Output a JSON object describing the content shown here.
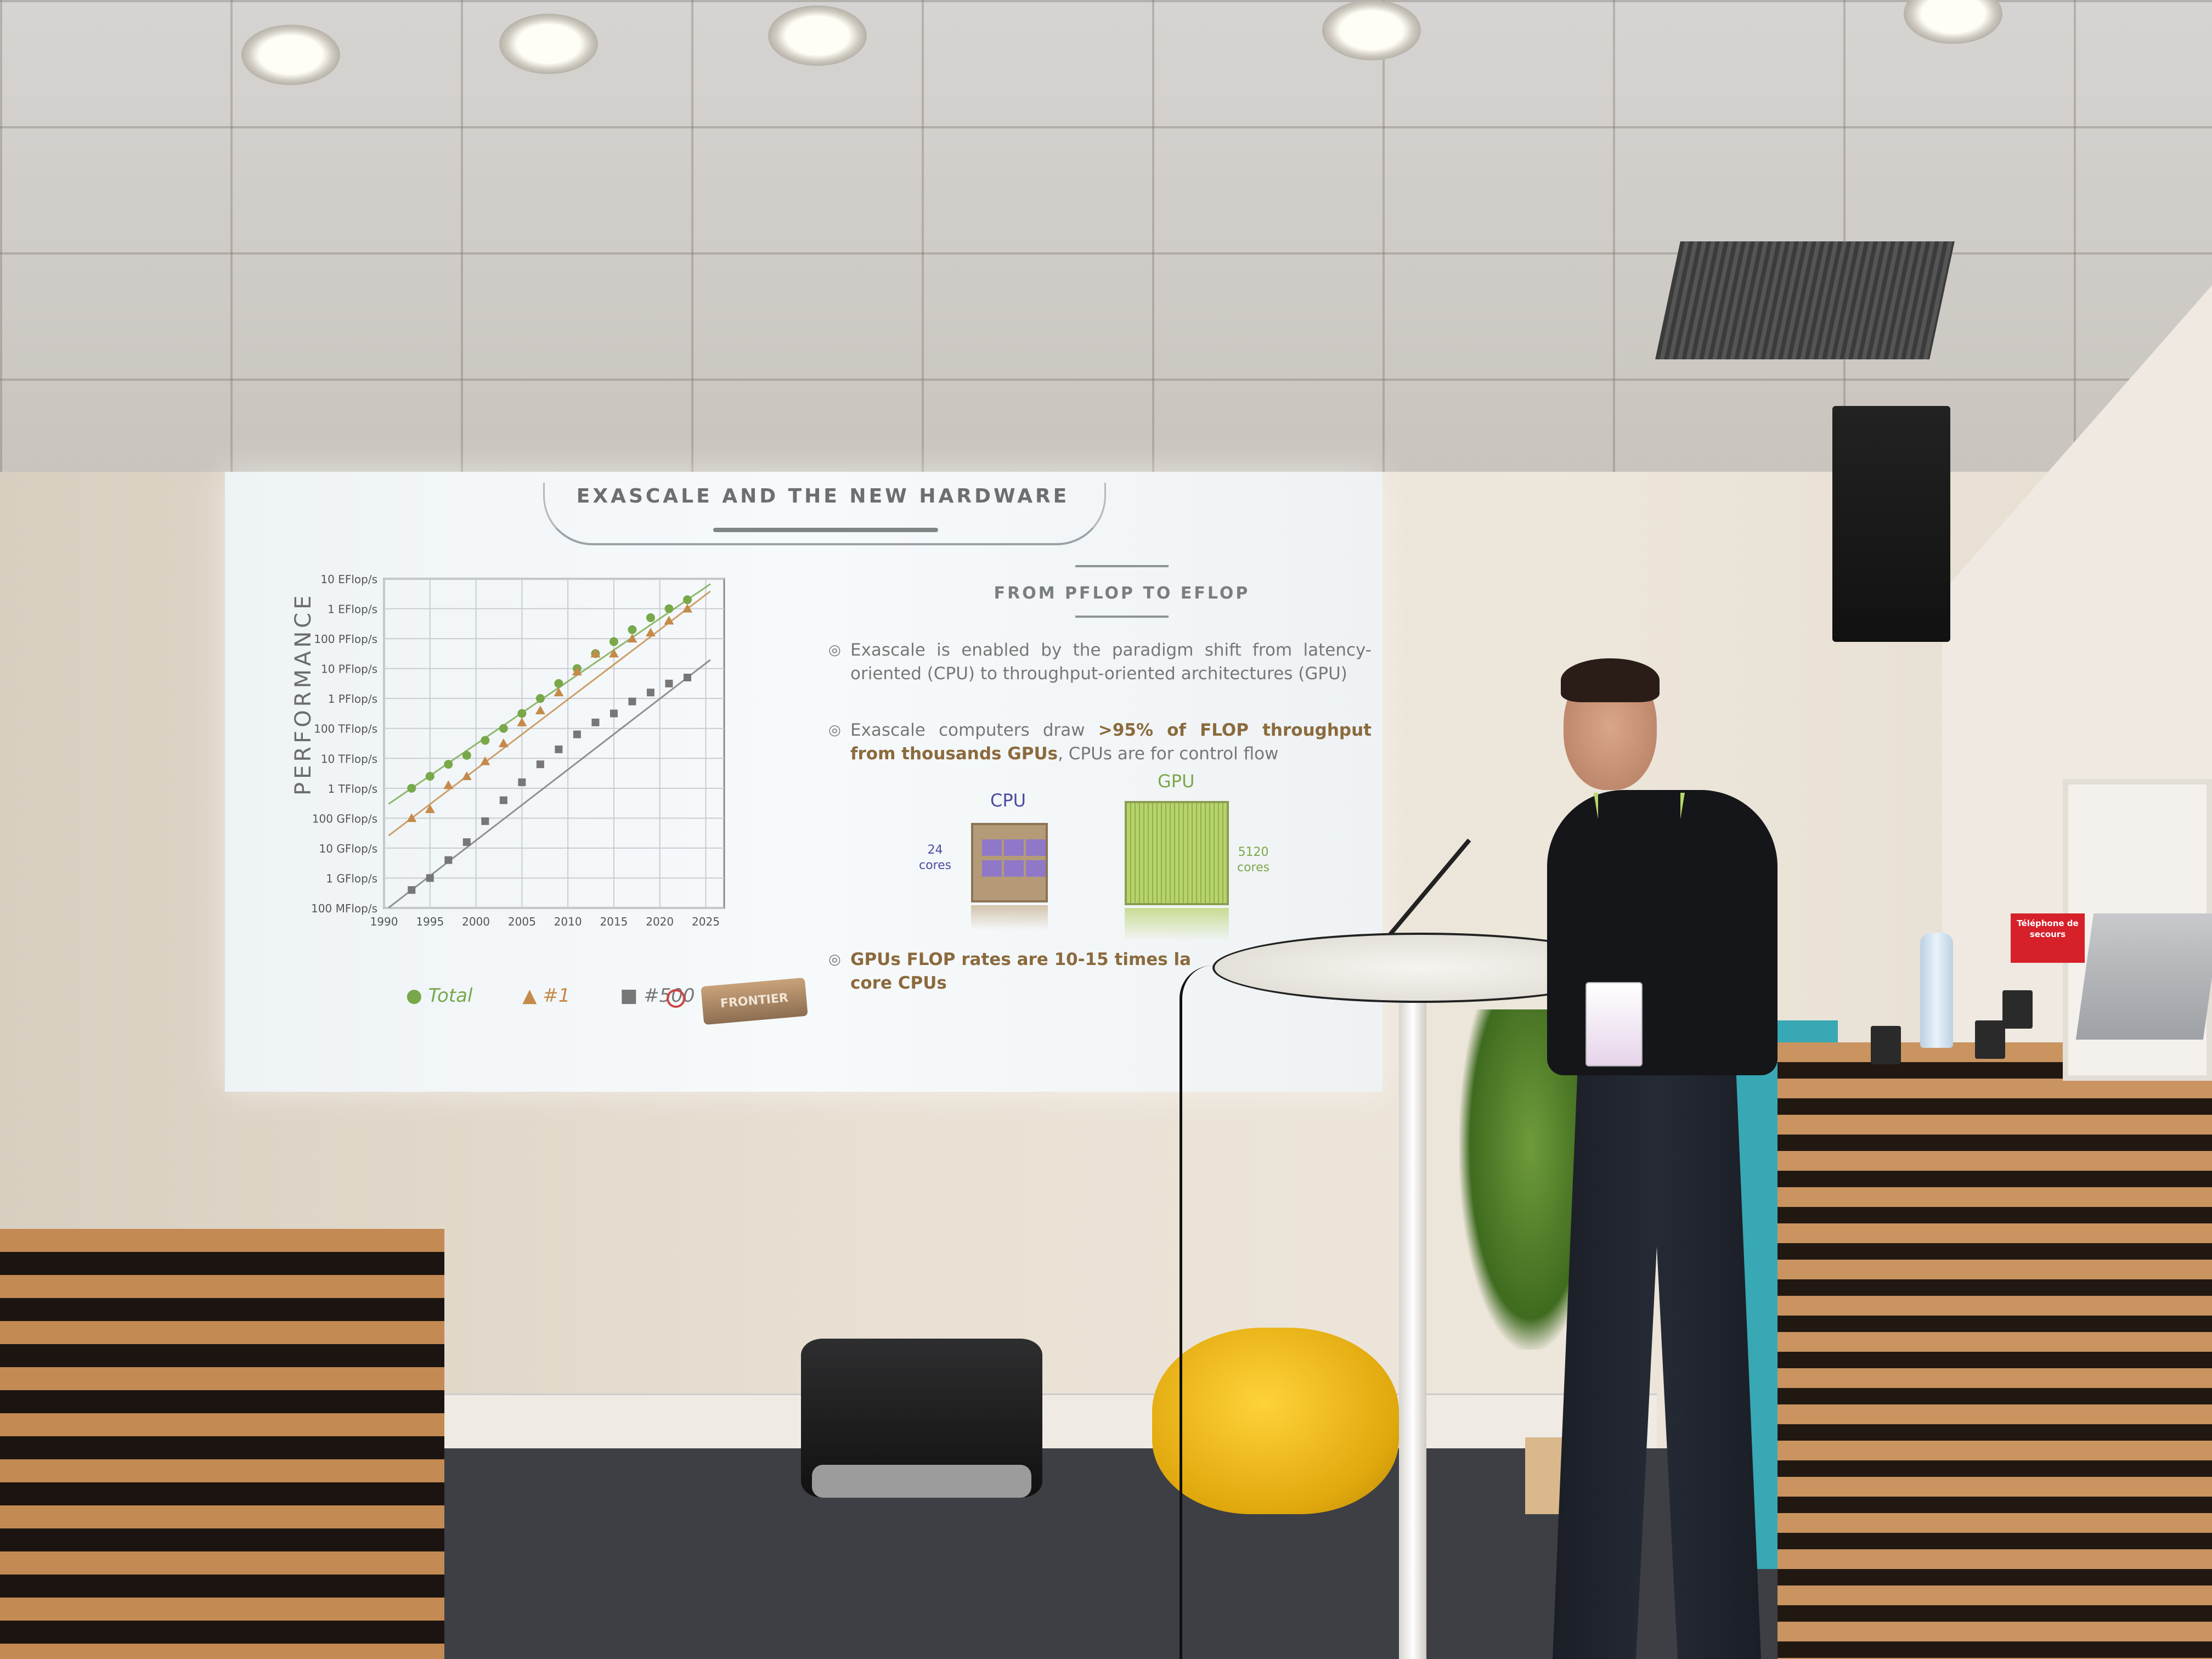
{
  "slide": {
    "title": "EXASCALE AND THE NEW HARDWARE",
    "subtitle": "FROM PFLOP TO EFLOP",
    "bullets": [
      {
        "text_a": "Exascale is enabled by the paradigm shift from latency-oriented (CPU) to throughput-oriented architectures (GPU)"
      },
      {
        "text_a": "Exascale computers draw ",
        "text_bold": ">95% of FLOP throughput from thousands GPUs",
        "text_b": ", CPUs are for control flow"
      },
      {
        "text_a": "GPUs FLOP rates are 10-15 times la",
        "text_b": "core CPUs"
      }
    ],
    "cpu": {
      "label": "CPU",
      "cores": "24",
      "cores_word": "cores",
      "color": "#4a4aa0"
    },
    "gpu": {
      "label": "GPU",
      "cores": "5120",
      "cores_word": "cores",
      "color": "#7ea64a"
    },
    "legend": {
      "total": "Total",
      "one": "#1",
      "five_hundred": "#500"
    },
    "logo_text": "FRONTIER"
  },
  "chart_data": {
    "type": "scatter",
    "ylabel": "PERFORMANCE",
    "xlabel": "",
    "x_ticks": [
      "1990",
      "1995",
      "2000",
      "2005",
      "2010",
      "2015",
      "2020",
      "2025"
    ],
    "y_ticks": [
      "10 EFlop/s",
      "1 EFlop/s",
      "100 PFlop/s",
      "10 PFlop/s",
      "1 PFlop/s",
      "100 TFlop/s",
      "10 TFlop/s",
      "1 TFlop/s",
      "100 GFlop/s",
      "10 GFlop/s",
      "1 GFlop/s",
      "100 MFlop/s"
    ],
    "y_scale": "log",
    "xlim": [
      1990,
      2027
    ],
    "ylim_flops_log10": [
      8,
      19
    ],
    "grid": true,
    "legend_position": "bottom",
    "series": [
      {
        "name": "Total",
        "marker": "circle",
        "color": "#78a84a",
        "x": [
          1993,
          1995,
          1997,
          1999,
          2001,
          2003,
          2005,
          2007,
          2009,
          2011,
          2013,
          2015,
          2017,
          2019,
          2021,
          2023
        ],
        "log10_y": [
          12.0,
          12.4,
          12.8,
          13.1,
          13.6,
          14.0,
          14.5,
          15.0,
          15.5,
          16.0,
          16.5,
          16.9,
          17.3,
          17.7,
          18.0,
          18.3
        ]
      },
      {
        "name": "#1",
        "marker": "triangle",
        "color": "#c58a4a",
        "x": [
          1993,
          1995,
          1997,
          1999,
          2001,
          2003,
          2005,
          2007,
          2009,
          2011,
          2013,
          2015,
          2017,
          2019,
          2021,
          2023
        ],
        "log10_y": [
          11.0,
          11.3,
          12.1,
          12.4,
          12.9,
          13.5,
          14.2,
          14.6,
          15.2,
          15.9,
          16.5,
          16.5,
          17.0,
          17.2,
          17.6,
          18.0
        ]
      },
      {
        "name": "#500",
        "marker": "square",
        "color": "#777777",
        "x": [
          1993,
          1995,
          1997,
          1999,
          2001,
          2003,
          2005,
          2007,
          2009,
          2011,
          2013,
          2015,
          2017,
          2019,
          2021,
          2023
        ],
        "log10_y": [
          8.6,
          9.0,
          9.6,
          10.2,
          10.9,
          11.6,
          12.2,
          12.8,
          13.3,
          13.8,
          14.2,
          14.5,
          14.9,
          15.2,
          15.5,
          15.7
        ]
      }
    ]
  },
  "room": {
    "sign_text": "Téléphone de secours"
  }
}
